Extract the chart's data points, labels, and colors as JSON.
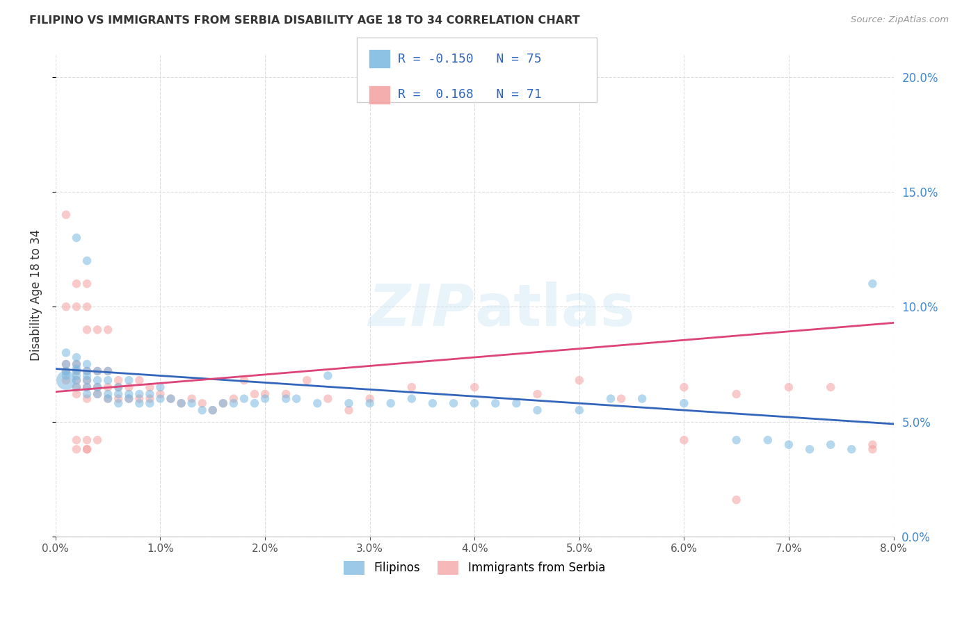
{
  "title": "FILIPINO VS IMMIGRANTS FROM SERBIA DISABILITY AGE 18 TO 34 CORRELATION CHART",
  "source": "Source: ZipAtlas.com",
  "ylabel": "Disability Age 18 to 34",
  "xlim": [
    0.0,
    0.08
  ],
  "ylim": [
    0.0,
    0.21
  ],
  "xticks": [
    0.0,
    0.01,
    0.02,
    0.03,
    0.04,
    0.05,
    0.06,
    0.07,
    0.08
  ],
  "yticks": [
    0.0,
    0.05,
    0.1,
    0.15,
    0.2
  ],
  "legend_labels": [
    "Filipinos",
    "Immigrants from Serbia"
  ],
  "blue_color": "#7ab8e0",
  "pink_color": "#f4a0a0",
  "blue_line_color": "#3366bb",
  "pink_line_color": "#dd4477",
  "R_blue": -0.15,
  "N_blue": 75,
  "R_pink": 0.168,
  "N_pink": 71,
  "watermark": "ZIPatlas",
  "blue_points_x": [
    0.001,
    0.001,
    0.001,
    0.001,
    0.001,
    0.002,
    0.002,
    0.002,
    0.002,
    0.002,
    0.002,
    0.002,
    0.002,
    0.003,
    0.003,
    0.003,
    0.003,
    0.003,
    0.003,
    0.003,
    0.004,
    0.004,
    0.004,
    0.004,
    0.005,
    0.005,
    0.005,
    0.005,
    0.006,
    0.006,
    0.006,
    0.007,
    0.007,
    0.007,
    0.008,
    0.008,
    0.009,
    0.009,
    0.01,
    0.01,
    0.011,
    0.012,
    0.013,
    0.014,
    0.015,
    0.016,
    0.017,
    0.018,
    0.019,
    0.02,
    0.022,
    0.023,
    0.025,
    0.026,
    0.028,
    0.03,
    0.032,
    0.034,
    0.036,
    0.038,
    0.04,
    0.042,
    0.044,
    0.046,
    0.05,
    0.053,
    0.056,
    0.06,
    0.065,
    0.068,
    0.07,
    0.072,
    0.074,
    0.076,
    0.078
  ],
  "blue_points_y": [
    0.068,
    0.07,
    0.072,
    0.075,
    0.08,
    0.065,
    0.068,
    0.07,
    0.072,
    0.073,
    0.075,
    0.078,
    0.13,
    0.062,
    0.065,
    0.068,
    0.07,
    0.072,
    0.075,
    0.12,
    0.062,
    0.065,
    0.068,
    0.072,
    0.06,
    0.062,
    0.068,
    0.072,
    0.058,
    0.062,
    0.065,
    0.06,
    0.062,
    0.068,
    0.058,
    0.062,
    0.058,
    0.062,
    0.06,
    0.065,
    0.06,
    0.058,
    0.058,
    0.055,
    0.055,
    0.058,
    0.058,
    0.06,
    0.058,
    0.06,
    0.06,
    0.06,
    0.058,
    0.07,
    0.058,
    0.058,
    0.058,
    0.06,
    0.058,
    0.058,
    0.058,
    0.058,
    0.058,
    0.055,
    0.055,
    0.06,
    0.06,
    0.058,
    0.042,
    0.042,
    0.04,
    0.038,
    0.04,
    0.038,
    0.11
  ],
  "blue_sizes": [
    400,
    80,
    80,
    80,
    80,
    80,
    80,
    80,
    80,
    80,
    80,
    80,
    80,
    80,
    80,
    80,
    80,
    80,
    80,
    80,
    80,
    80,
    80,
    80,
    80,
    80,
    80,
    80,
    80,
    80,
    80,
    80,
    80,
    80,
    80,
    80,
    80,
    80,
    80,
    80,
    80,
    80,
    80,
    80,
    80,
    80,
    80,
    80,
    80,
    80,
    80,
    80,
    80,
    80,
    80,
    80,
    80,
    80,
    80,
    80,
    80,
    80,
    80,
    80,
    80,
    80,
    80,
    80,
    80,
    80,
    80,
    80,
    80,
    80,
    80
  ],
  "pink_points_x": [
    0.001,
    0.001,
    0.001,
    0.001,
    0.001,
    0.002,
    0.002,
    0.002,
    0.002,
    0.002,
    0.002,
    0.002,
    0.003,
    0.003,
    0.003,
    0.003,
    0.003,
    0.003,
    0.003,
    0.004,
    0.004,
    0.004,
    0.004,
    0.005,
    0.005,
    0.005,
    0.005,
    0.006,
    0.006,
    0.006,
    0.007,
    0.007,
    0.008,
    0.008,
    0.009,
    0.009,
    0.01,
    0.011,
    0.012,
    0.013,
    0.014,
    0.015,
    0.016,
    0.017,
    0.018,
    0.019,
    0.02,
    0.022,
    0.024,
    0.026,
    0.028,
    0.03,
    0.034,
    0.04,
    0.046,
    0.05,
    0.054,
    0.06,
    0.065,
    0.07,
    0.074,
    0.078,
    0.078,
    0.06,
    0.065,
    0.002,
    0.002,
    0.003,
    0.003,
    0.003,
    0.004
  ],
  "pink_points_y": [
    0.068,
    0.072,
    0.075,
    0.1,
    0.14,
    0.062,
    0.065,
    0.068,
    0.072,
    0.075,
    0.1,
    0.11,
    0.06,
    0.065,
    0.068,
    0.072,
    0.09,
    0.1,
    0.11,
    0.062,
    0.065,
    0.072,
    0.09,
    0.06,
    0.065,
    0.072,
    0.09,
    0.06,
    0.065,
    0.068,
    0.06,
    0.065,
    0.06,
    0.068,
    0.06,
    0.065,
    0.062,
    0.06,
    0.058,
    0.06,
    0.058,
    0.055,
    0.058,
    0.06,
    0.068,
    0.062,
    0.062,
    0.062,
    0.068,
    0.06,
    0.055,
    0.06,
    0.065,
    0.065,
    0.062,
    0.068,
    0.06,
    0.065,
    0.062,
    0.065,
    0.065,
    0.038,
    0.04,
    0.042,
    0.016,
    0.038,
    0.042,
    0.038,
    0.042,
    0.038,
    0.042
  ],
  "pink_sizes": [
    80,
    80,
    80,
    80,
    80,
    80,
    80,
    80,
    80,
    80,
    80,
    80,
    80,
    80,
    80,
    80,
    80,
    80,
    80,
    80,
    80,
    80,
    80,
    80,
    80,
    80,
    80,
    80,
    80,
    80,
    80,
    80,
    80,
    80,
    80,
    80,
    80,
    80,
    80,
    80,
    80,
    80,
    80,
    80,
    80,
    80,
    80,
    80,
    80,
    80,
    80,
    80,
    80,
    80,
    80,
    80,
    80,
    80,
    80,
    80,
    80,
    80,
    80,
    80,
    80,
    80,
    80,
    80,
    80,
    80,
    80
  ],
  "blue_trend_x": [
    0.0,
    0.08
  ],
  "blue_trend_y": [
    0.073,
    0.049
  ],
  "pink_trend_x": [
    0.0,
    0.08
  ],
  "pink_trend_y": [
    0.063,
    0.093
  ]
}
